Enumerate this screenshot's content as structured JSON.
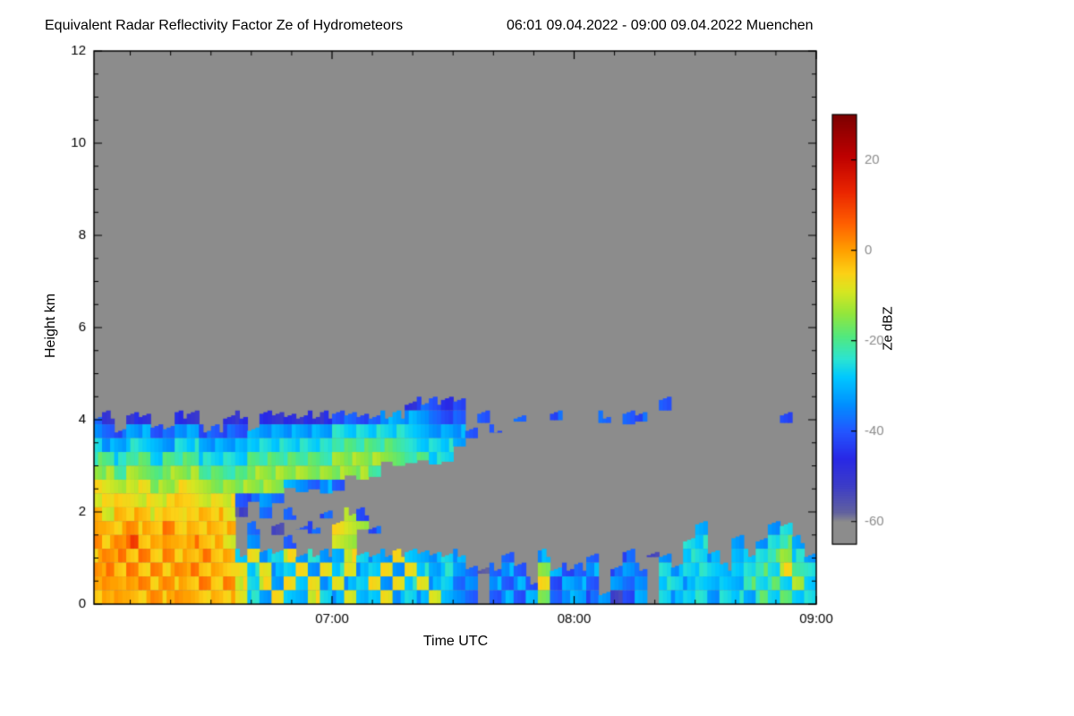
{
  "header": {
    "title": "Equivalent Radar Reflectivity Factor Ze of Hydrometeors",
    "time_range": "06:01 09.04.2022 - 09:00 09.04.2022 Muenchen"
  },
  "chart_data": {
    "type": "heatmap",
    "title": "Equivalent Radar Reflectivity Factor Ze of Hydrometeors",
    "subtitle": "06:01 09.04.2022 - 09:00 09.04.2022 Muenchen",
    "xlabel": "Time UTC",
    "ylabel": "Height km",
    "x_range_hours": [
      6.0167,
      9.0
    ],
    "x_ticks": [
      {
        "t": 7,
        "label": "07:00"
      },
      {
        "t": 8,
        "label": "08:00"
      },
      {
        "t": 9,
        "label": "09:00"
      }
    ],
    "x_minor_step_hours": 0.1666667,
    "y_range_km": [
      0,
      12
    ],
    "y_ticks": [
      {
        "v": 0,
        "label": "0"
      },
      {
        "v": 2,
        "label": "2"
      },
      {
        "v": 4,
        "label": "4"
      },
      {
        "v": 6,
        "label": "6"
      },
      {
        "v": 8,
        "label": "8"
      },
      {
        "v": 10,
        "label": "10"
      },
      {
        "v": 12,
        "label": "12"
      }
    ],
    "y_minor_step_km": 0.5,
    "no_echo_color": "#8c8c8c",
    "frame_color": "#000000",
    "colorbar": {
      "label": "Ze dBZ",
      "vmin": -65,
      "vmax": 30,
      "ticks": [
        {
          "v": 20,
          "label": "20"
        },
        {
          "v": 0,
          "label": "0"
        },
        {
          "v": -20,
          "label": "-20"
        },
        {
          "v": -40,
          "label": "-40"
        },
        {
          "v": -60,
          "label": "-60"
        }
      ]
    },
    "colormap_stops": [
      [
        -65,
        "#8c8c8c"
      ],
      [
        -60,
        "#8c8c8c"
      ],
      [
        -58,
        "#62629e"
      ],
      [
        -52,
        "#3c3cc8"
      ],
      [
        -46,
        "#2828e6"
      ],
      [
        -40,
        "#2356ff"
      ],
      [
        -34,
        "#0090ff"
      ],
      [
        -28,
        "#00c8ff"
      ],
      [
        -24,
        "#2be4d2"
      ],
      [
        -19,
        "#52e87e"
      ],
      [
        -14,
        "#93e63c"
      ],
      [
        -9,
        "#d7e621"
      ],
      [
        -5,
        "#fcd116"
      ],
      [
        0,
        "#ffa000"
      ],
      [
        6,
        "#ff5f00"
      ],
      [
        13,
        "#ea2500"
      ],
      [
        21,
        "#bd0000"
      ],
      [
        30,
        "#7d0000"
      ]
    ],
    "grid": {
      "comment": "dBZ heatmap, columns are 3-min steps from 06:00 UTC, rows top-to-bottom from 4.8 km down to 0 km in 0.3 km steps; '.' = no echo (gray background)",
      "t0_hours": 6.0,
      "dt_hours": 0.05,
      "z0_km": 0.0,
      "dz_km": 0.3,
      "order": "top_to_bottom",
      "codes": {
        ".": null,
        "1": -55,
        "2": -48,
        "3": -40,
        "4": -32,
        "5": -26,
        "6": -20,
        "7": -14,
        "8": -8,
        "9": -3,
        "A": 2,
        "B": 8
      },
      "rows": [
        [
          "..........",
          "..........",
          "..........",
          "..........",
          "..........",
          ".........."
        ],
        [
          "..........",
          "..........",
          "......2332",
          "3.........",
          ".......3..",
          ".........."
        ],
        [
          "32.22..22.",
          ".22.222222",
          "3333444433",
          "3.3..3..3.",
          "..3.33....",
          ".......3.."
        ],
        [
          "4334433443",
          "3334444444",
          "5555555444",
          "43.3......",
          "..........",
          ".........."
        ],
        [
          "5445544554",
          "4445555555",
          "6666665555",
          "4.........",
          "..........",
          ".........."
        ],
        [
          "6656656665",
          "5556666666",
          "7777766655",
          "..........",
          "..........",
          ".........."
        ],
        [
          "7767767776",
          "6667777777",
          "7776......",
          "..........",
          "..........",
          ".........."
        ],
        [
          "8878877887",
          "7777774434",
          "3.........",
          "..........",
          "..........",
          ".........."
        ],
        [
          "8898888988",
          "883343....",
          "..........",
          "..........",
          "..........",
          ".........."
        ],
        [
          "9899989899",
          "981.3.3..3",
          ".73.......",
          "..........",
          "..........",
          ".........."
        ],
        [
          "A99A99A999",
          "99.3.1.33.",
          "8873......",
          "..........",
          "..........",
          "4.....45.."
        ],
        [
          "A9AB99A9A9",
          "98.4..3...",
          "87........",
          "..........",
          ".........5",
          "5..4.4564."
        ],
        [
          "9AA9A9A99A",
          "9958458454",
          "4854485445",
          "4...3..4..",
          ".3..3.14.5",
          "54.4556754"
        ],
        [
          "AA9A9A9AA9",
          "9985845848",
          "5845848545",
          "431343.743",
          "34.343.545",
          "5545565865"
        ],
        [
          "9A9AA9A99A",
          "9A85848584",
          "8458485845",
          "34.4343834",
          "43.434.554",
          "5454656575"
        ],
        [
          "99A99A9A99",
          "9985485485",
          "4845845484",
          "43.3434734",
          "434134.545",
          "5455465655"
        ]
      ]
    }
  }
}
